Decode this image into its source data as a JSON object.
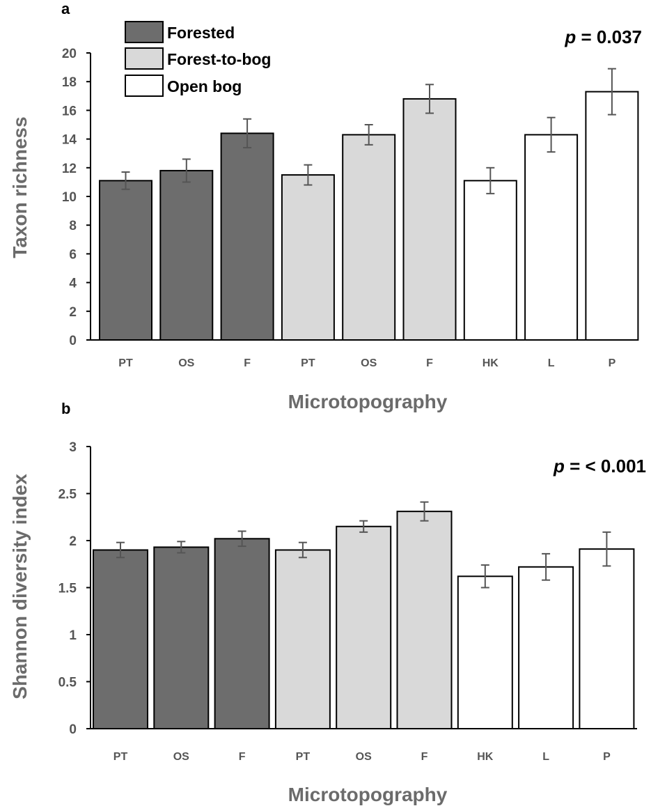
{
  "chart_data": [
    {
      "type": "bar",
      "panel_label": "a",
      "categories": [
        "PT",
        "OS",
        "F",
        "PT",
        "OS",
        "F",
        "HK",
        "L",
        "P"
      ],
      "groups": [
        "Forested",
        "Forested",
        "Forested",
        "Forest-to-bog",
        "Forest-to-bog",
        "Forest-to-bog",
        "Open bog",
        "Open bog",
        "Open bog"
      ],
      "values": [
        11.1,
        11.8,
        14.4,
        11.5,
        14.3,
        16.8,
        11.1,
        14.3,
        17.3
      ],
      "errors": [
        0.6,
        0.8,
        1.0,
        0.7,
        0.7,
        1.0,
        0.9,
        1.2,
        1.6
      ],
      "xlabel": "Microtopography",
      "ylabel": "Taxon richness",
      "ylim": [
        0,
        20
      ],
      "yticks": [
        "0",
        "2",
        "4",
        "6",
        "8",
        "10",
        "12",
        "14",
        "16",
        "18",
        "20"
      ],
      "p_label": "p",
      "p_text": " = 0.037",
      "legend": [
        {
          "name": "Forested",
          "color": "#6d6d6d"
        },
        {
          "name": "Forest-to-bog",
          "color": "#d9d9d9"
        },
        {
          "name": "Open bog",
          "color": "#ffffff"
        }
      ],
      "legend_position": "top-left",
      "grid": false
    },
    {
      "type": "bar",
      "panel_label": "b",
      "categories": [
        "PT",
        "OS",
        "F",
        "PT",
        "OS",
        "F",
        "HK",
        "L",
        "P"
      ],
      "groups": [
        "Forested",
        "Forested",
        "Forested",
        "Forest-to-bog",
        "Forest-to-bog",
        "Forest-to-bog",
        "Open bog",
        "Open bog",
        "Open bog"
      ],
      "values": [
        1.9,
        1.93,
        2.02,
        1.9,
        2.15,
        2.31,
        1.62,
        1.72,
        1.91
      ],
      "errors": [
        0.08,
        0.06,
        0.08,
        0.08,
        0.06,
        0.1,
        0.12,
        0.14,
        0.18
      ],
      "xlabel": "Microtopography",
      "ylabel": "Shannon diversity index",
      "ylim": [
        0,
        3
      ],
      "yticks": [
        "0",
        "0.5",
        "1",
        "1.5",
        "2",
        "2.5",
        "3"
      ],
      "p_label": "p",
      "p_text": " = < 0.001",
      "grid": false
    }
  ],
  "colors": {
    "Forested": "#6d6d6d",
    "Forest-to-bog": "#d9d9d9",
    "Open bog": "#ffffff",
    "bar_edge": "#000000",
    "error_bar": "#555555",
    "axis": "#000000"
  }
}
